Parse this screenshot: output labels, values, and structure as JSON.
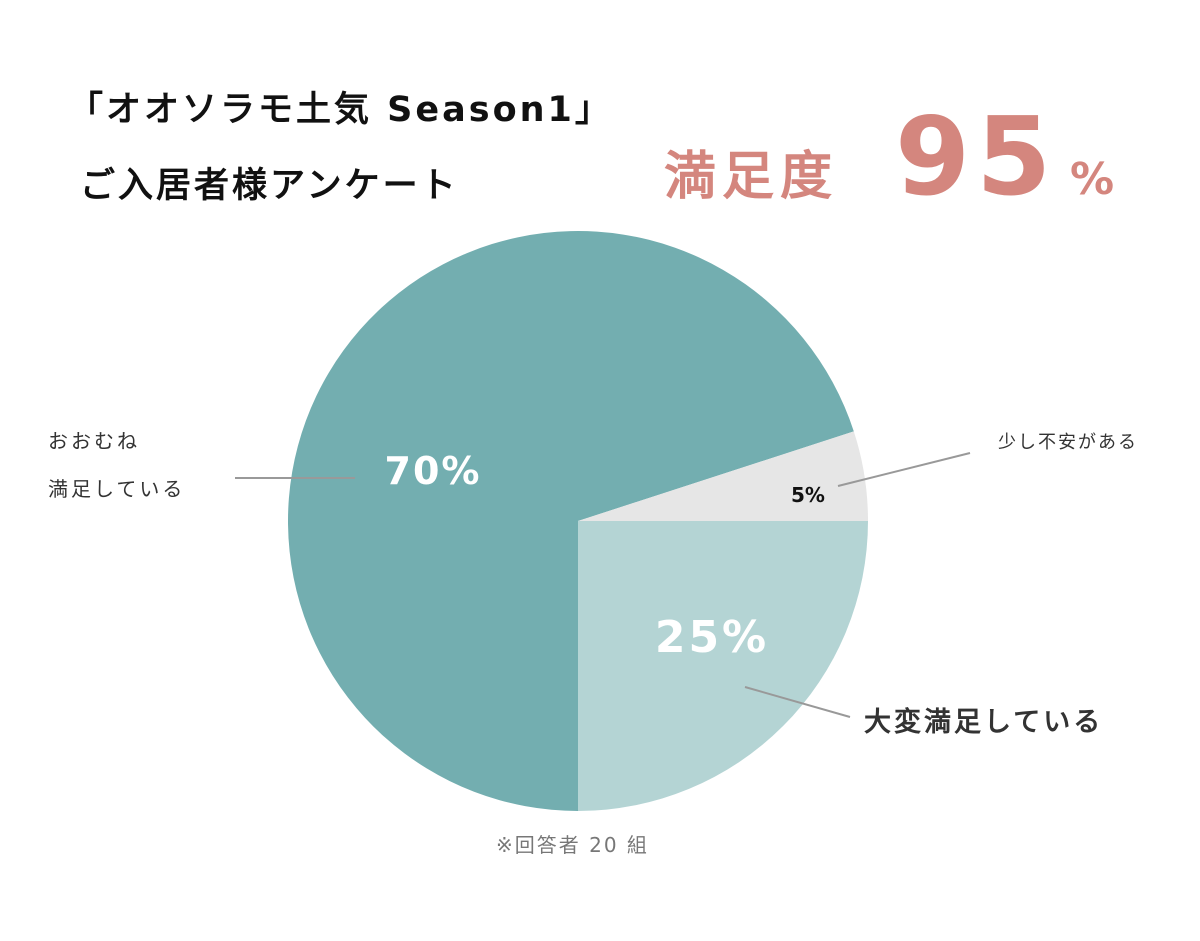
{
  "title_lines": [
    "「オオソラモ土気 Season1」",
    "ご入居者様アンケート"
  ],
  "headline": {
    "label": "満足度",
    "value": "95",
    "unit": "%"
  },
  "chart_data": {
    "type": "pie",
    "slices": [
      {
        "label": "大変満足している",
        "value": 25,
        "value_label": "25%",
        "color": "#b4d4d4"
      },
      {
        "label": "おおむね満足している",
        "label_lines": [
          "おおむね",
          "満足している"
        ],
        "value": 70,
        "value_label": "70%",
        "color": "#73aeb0"
      },
      {
        "label": "少し不安がある",
        "value": 5,
        "value_label": "5%",
        "color": "#e6e6e6"
      }
    ],
    "start": "3 o'clock",
    "direction": "clockwise"
  },
  "footnote": "※回答者 20 組",
  "colors": {
    "headline": "#d4867e",
    "text": "#111111",
    "label_text": "#333333",
    "leader": "#999999",
    "footnote": "#777777"
  }
}
